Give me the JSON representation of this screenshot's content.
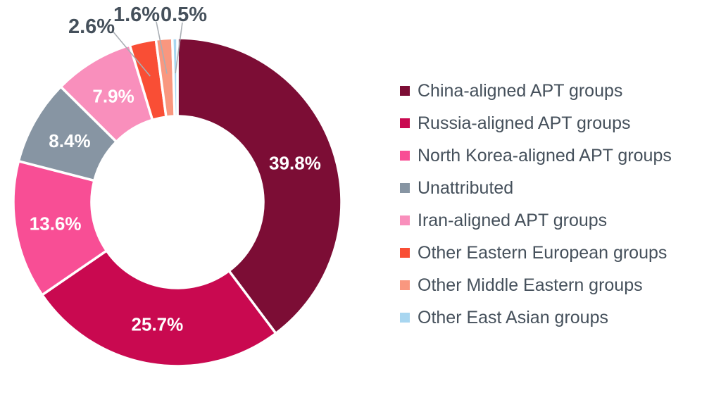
{
  "chart_data": {
    "type": "pie",
    "subtype": "donut",
    "title": "",
    "unit": "%",
    "start_angle_deg": 0,
    "direction": "clockwise",
    "legend_position": "right",
    "background_color": "#FFFFFF",
    "value_label_color_inside": "#FFFFFF",
    "value_label_color_outside": "#45505B",
    "leader_line_color": "#A9AEB4",
    "separator_color": "#FFFFFF",
    "slices": [
      {
        "label": "China-aligned APT groups",
        "value": 39.8,
        "value_text": "39.8%",
        "color": "#7C0D35",
        "label_placement": "inside"
      },
      {
        "label": "Russia-aligned APT groups",
        "value": 25.7,
        "value_text": "25.7%",
        "color": "#C90950",
        "label_placement": "inside"
      },
      {
        "label": "North Korea-aligned APT groups",
        "value": 13.6,
        "value_text": "13.6%",
        "color": "#F84E95",
        "label_placement": "inside"
      },
      {
        "label": "Unattributed",
        "value": 8.4,
        "value_text": "8.4%",
        "color": "#8795A3",
        "label_placement": "inside"
      },
      {
        "label": "Iran-aligned APT groups",
        "value": 7.9,
        "value_text": "7.9%",
        "color": "#F98FBC",
        "label_placement": "inside"
      },
      {
        "label": "Other Eastern European groups",
        "value": 2.6,
        "value_text": "2.6%",
        "color": "#F94E35",
        "label_placement": "outside"
      },
      {
        "label": "Other Middle Eastern groups",
        "value": 1.6,
        "value_text": "1.6%",
        "color": "#F9977F",
        "label_placement": "outside"
      },
      {
        "label": "Other East Asian groups",
        "value": 0.5,
        "value_text": "0.5%",
        "color": "#A8D6F0",
        "label_placement": "outside"
      }
    ]
  }
}
